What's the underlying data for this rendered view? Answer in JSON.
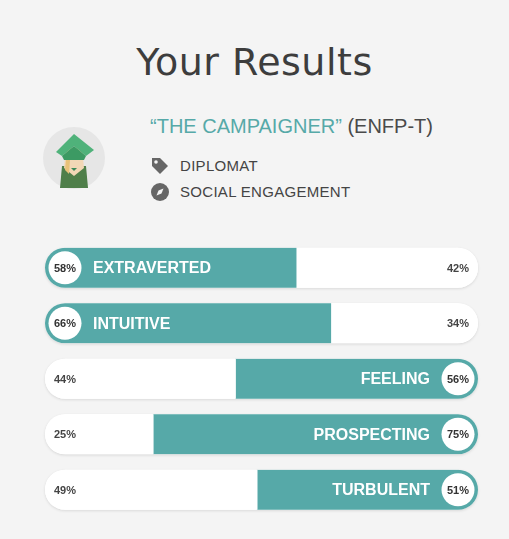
{
  "chart_data": {
    "type": "bar",
    "title": "Your Results",
    "orientation": "horizontal",
    "stacked": true,
    "categories": [
      "EXTRAVERTED",
      "INTUITIVE",
      "FEELING",
      "PROSPECTING",
      "TURBULENT"
    ],
    "series": [
      {
        "values": [
          58,
          66,
          44,
          25,
          49
        ],
        "value_labels": [
          "58%",
          "66%",
          "44%",
          "25%",
          "49%"
        ],
        "colors": [
          "#56a9a8",
          "#56a9a8",
          "#ffffff",
          "#ffffff",
          "#ffffff"
        ]
      },
      {
        "values": [
          42,
          34,
          56,
          75,
          51
        ],
        "value_labels": [
          "42%",
          "34%",
          "56%",
          "75%",
          "51%"
        ],
        "colors": [
          "#ffffff",
          "#ffffff",
          "#56a9a8",
          "#56a9a8",
          "#56a9a8"
        ]
      }
    ],
    "xlim": [
      0,
      100
    ],
    "grid": false,
    "tick_labels": false,
    "data_labels": true
  },
  "profile": {
    "name": "“THE CAMPAIGNER”",
    "code": "(ENFP-T)",
    "tags": [
      "DIPLOMAT",
      "SOCIAL ENGAGEMENT"
    ]
  }
}
